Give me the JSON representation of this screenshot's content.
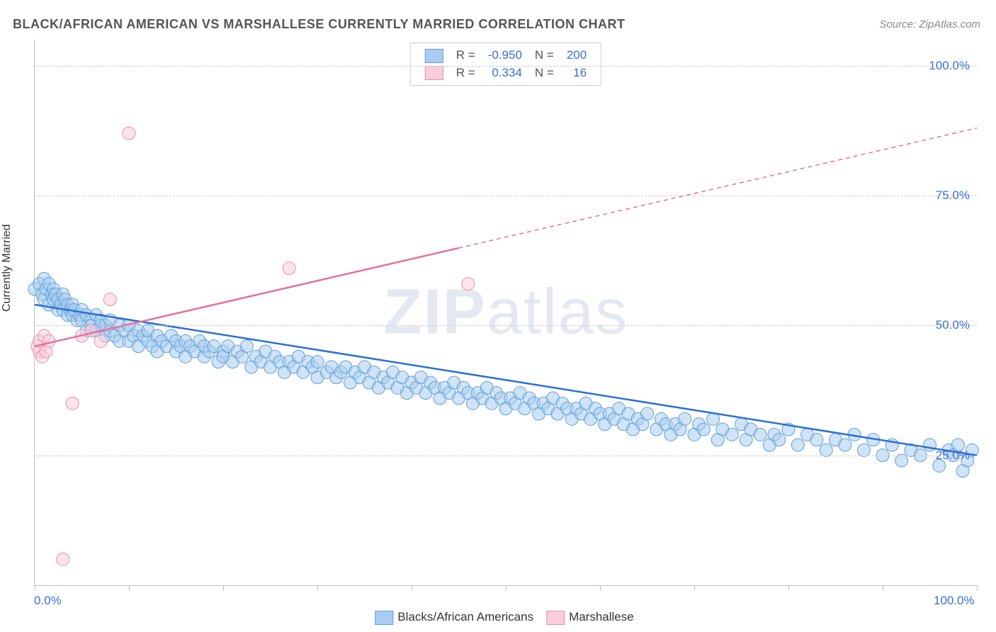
{
  "title": "BLACK/AFRICAN AMERICAN VS MARSHALLESE CURRENTLY MARRIED CORRELATION CHART",
  "source": "Source: ZipAtlas.com",
  "ylabel": "Currently Married",
  "watermark_a": "ZIP",
  "watermark_b": "atlas",
  "chart": {
    "type": "scatter-correlation",
    "background_color": "#ffffff",
    "grid_color": "#cccccc",
    "axis_color": "#bfbfbf",
    "tick_label_color": "#3a6fd8",
    "xlim": [
      0,
      100
    ],
    "ylim": [
      0,
      105
    ],
    "y_gridlines": [
      25,
      50,
      75,
      100
    ],
    "y_tick_labels": [
      "25.0%",
      "50.0%",
      "75.0%",
      "100.0%"
    ],
    "x_ticks": [
      0,
      10,
      20,
      30,
      40,
      50,
      60,
      70,
      80,
      90,
      100
    ],
    "x_tick_labels_left": "0.0%",
    "x_tick_labels_right": "100.0%",
    "marker_radius": 9,
    "marker_opacity": 0.55,
    "line_width": 2.5
  },
  "legend_stats": {
    "rows": [
      {
        "swatch_fill": "#a9cdf0",
        "swatch_border": "#5f9edb",
        "r_label": "R =",
        "r_value": "-0.950",
        "n_label": "N =",
        "n_value": "200"
      },
      {
        "swatch_fill": "#fbcddb",
        "swatch_border": "#e88fac",
        "r_label": "R =",
        "r_value": "0.334",
        "n_label": "N =",
        "n_value": "16"
      }
    ],
    "label_color": "#555555",
    "value_color": "#3a6fd8"
  },
  "bottom_legend": [
    {
      "swatch_fill": "#a9cdf0",
      "swatch_border": "#5f9edb",
      "label": "Blacks/African Americans"
    },
    {
      "swatch_fill": "#fbcddb",
      "swatch_border": "#e88fac",
      "label": "Marshallese"
    }
  ],
  "series": [
    {
      "name": "Blacks/African Americans",
      "color_fill": "#a9cdf0",
      "color_stroke": "#5f9edb",
      "line_color": "#2a6fd6",
      "regression": {
        "x1": 0,
        "y1": 54,
        "x2": 100,
        "y2": 25
      },
      "dashed_from_x": null,
      "points": [
        [
          0,
          57
        ],
        [
          0.5,
          58
        ],
        [
          0.8,
          56
        ],
        [
          1,
          59
        ],
        [
          1,
          55
        ],
        [
          1.2,
          57
        ],
        [
          1.5,
          58
        ],
        [
          1.5,
          54
        ],
        [
          1.8,
          56
        ],
        [
          2,
          57
        ],
        [
          2,
          55
        ],
        [
          2.2,
          56
        ],
        [
          2.5,
          53
        ],
        [
          2.5,
          55
        ],
        [
          2.8,
          54
        ],
        [
          3,
          56
        ],
        [
          3,
          53
        ],
        [
          3.2,
          55
        ],
        [
          3.5,
          52
        ],
        [
          3.5,
          54
        ],
        [
          3.8,
          53
        ],
        [
          4,
          54
        ],
        [
          4,
          52
        ],
        [
          4.2,
          53
        ],
        [
          4.5,
          51
        ],
        [
          4.8,
          52
        ],
        [
          5,
          53
        ],
        [
          5,
          51
        ],
        [
          5.5,
          52
        ],
        [
          5.5,
          49
        ],
        [
          6,
          51
        ],
        [
          6,
          50
        ],
        [
          6.5,
          52
        ],
        [
          6.5,
          49
        ],
        [
          7,
          50
        ],
        [
          7,
          51
        ],
        [
          7.5,
          48
        ],
        [
          7.5,
          50
        ],
        [
          8,
          49
        ],
        [
          8,
          51
        ],
        [
          8.5,
          48
        ],
        [
          9,
          50
        ],
        [
          9,
          47
        ],
        [
          9.5,
          49
        ],
        [
          10,
          50
        ],
        [
          10,
          47
        ],
        [
          10.5,
          48
        ],
        [
          11,
          49
        ],
        [
          11,
          46
        ],
        [
          11.5,
          48
        ],
        [
          12,
          47
        ],
        [
          12,
          49
        ],
        [
          12.5,
          46
        ],
        [
          13,
          48
        ],
        [
          13,
          45
        ],
        [
          13.5,
          47
        ],
        [
          14,
          46
        ],
        [
          14.5,
          48
        ],
        [
          15,
          45
        ],
        [
          15,
          47
        ],
        [
          15.5,
          46
        ],
        [
          16,
          47
        ],
        [
          16,
          44
        ],
        [
          16.5,
          46
        ],
        [
          17,
          45
        ],
        [
          17.5,
          47
        ],
        [
          18,
          44
        ],
        [
          18,
          46
        ],
        [
          18.5,
          45
        ],
        [
          19,
          46
        ],
        [
          19.5,
          43
        ],
        [
          20,
          45
        ],
        [
          20,
          44
        ],
        [
          20.5,
          46
        ],
        [
          21,
          43
        ],
        [
          21.5,
          45
        ],
        [
          22,
          44
        ],
        [
          22.5,
          46
        ],
        [
          23,
          42
        ],
        [
          23.5,
          44
        ],
        [
          24,
          43
        ],
        [
          24.5,
          45
        ],
        [
          25,
          42
        ],
        [
          25.5,
          44
        ],
        [
          26,
          43
        ],
        [
          26.5,
          41
        ],
        [
          27,
          43
        ],
        [
          27.5,
          42
        ],
        [
          28,
          44
        ],
        [
          28.5,
          41
        ],
        [
          29,
          43
        ],
        [
          29.5,
          42
        ],
        [
          30,
          40
        ],
        [
          30,
          43
        ],
        [
          31,
          41
        ],
        [
          31.5,
          42
        ],
        [
          32,
          40
        ],
        [
          32.5,
          41
        ],
        [
          33,
          42
        ],
        [
          33.5,
          39
        ],
        [
          34,
          41
        ],
        [
          34.5,
          40
        ],
        [
          35,
          42
        ],
        [
          35.5,
          39
        ],
        [
          36,
          41
        ],
        [
          36.5,
          38
        ],
        [
          37,
          40
        ],
        [
          37.5,
          39
        ],
        [
          38,
          41
        ],
        [
          38.5,
          38
        ],
        [
          39,
          40
        ],
        [
          39.5,
          37
        ],
        [
          40,
          39
        ],
        [
          40.5,
          38
        ],
        [
          41,
          40
        ],
        [
          41.5,
          37
        ],
        [
          42,
          39
        ],
        [
          42.5,
          38
        ],
        [
          43,
          36
        ],
        [
          43.5,
          38
        ],
        [
          44,
          37
        ],
        [
          44.5,
          39
        ],
        [
          45,
          36
        ],
        [
          45.5,
          38
        ],
        [
          46,
          37
        ],
        [
          46.5,
          35
        ],
        [
          47,
          37
        ],
        [
          47.5,
          36
        ],
        [
          48,
          38
        ],
        [
          48.5,
          35
        ],
        [
          49,
          37
        ],
        [
          49.5,
          36
        ],
        [
          50,
          34
        ],
        [
          50.5,
          36
        ],
        [
          51,
          35
        ],
        [
          51.5,
          37
        ],
        [
          52,
          34
        ],
        [
          52.5,
          36
        ],
        [
          53,
          35
        ],
        [
          53.5,
          33
        ],
        [
          54,
          35
        ],
        [
          54.5,
          34
        ],
        [
          55,
          36
        ],
        [
          55.5,
          33
        ],
        [
          56,
          35
        ],
        [
          56.5,
          34
        ],
        [
          57,
          32
        ],
        [
          57.5,
          34
        ],
        [
          58,
          33
        ],
        [
          58.5,
          35
        ],
        [
          59,
          32
        ],
        [
          59.5,
          34
        ],
        [
          60,
          33
        ],
        [
          60.5,
          31
        ],
        [
          61,
          33
        ],
        [
          61.5,
          32
        ],
        [
          62,
          34
        ],
        [
          62.5,
          31
        ],
        [
          63,
          33
        ],
        [
          63.5,
          30
        ],
        [
          64,
          32
        ],
        [
          64.5,
          31
        ],
        [
          65,
          33
        ],
        [
          66,
          30
        ],
        [
          66.5,
          32
        ],
        [
          67,
          31
        ],
        [
          67.5,
          29
        ],
        [
          68,
          31
        ],
        [
          68.5,
          30
        ],
        [
          69,
          32
        ],
        [
          70,
          29
        ],
        [
          70.5,
          31
        ],
        [
          71,
          30
        ],
        [
          72,
          32
        ],
        [
          72.5,
          28
        ],
        [
          73,
          30
        ],
        [
          74,
          29
        ],
        [
          75,
          31
        ],
        [
          75.5,
          28
        ],
        [
          76,
          30
        ],
        [
          77,
          29
        ],
        [
          78,
          27
        ],
        [
          78.5,
          29
        ],
        [
          79,
          28
        ],
        [
          80,
          30
        ],
        [
          81,
          27
        ],
        [
          82,
          29
        ],
        [
          83,
          28
        ],
        [
          84,
          26
        ],
        [
          85,
          28
        ],
        [
          86,
          27
        ],
        [
          87,
          29
        ],
        [
          88,
          26
        ],
        [
          89,
          28
        ],
        [
          90,
          25
        ],
        [
          91,
          27
        ],
        [
          92,
          24
        ],
        [
          93,
          26
        ],
        [
          94,
          25
        ],
        [
          95,
          27
        ],
        [
          96,
          23
        ],
        [
          97,
          26
        ],
        [
          97.5,
          25
        ],
        [
          98,
          27
        ],
        [
          98.5,
          22
        ],
        [
          99,
          24
        ],
        [
          99.5,
          26
        ]
      ]
    },
    {
      "name": "Marshallese",
      "color_fill": "#fbcddb",
      "color_stroke": "#e88fac",
      "line_color": "#e76f99",
      "regression": {
        "x1": 0,
        "y1": 46,
        "x2": 100,
        "y2": 88
      },
      "dashed_from_x": 45,
      "points": [
        [
          0.3,
          46
        ],
        [
          0.5,
          45
        ],
        [
          0.5,
          47
        ],
        [
          0.8,
          44
        ],
        [
          1,
          48
        ],
        [
          1.2,
          45
        ],
        [
          1.5,
          47
        ],
        [
          4,
          35
        ],
        [
          5,
          48
        ],
        [
          6,
          49
        ],
        [
          7,
          47
        ],
        [
          8,
          55
        ],
        [
          3,
          5
        ],
        [
          10,
          87
        ],
        [
          27,
          61
        ],
        [
          46,
          58
        ]
      ]
    }
  ]
}
